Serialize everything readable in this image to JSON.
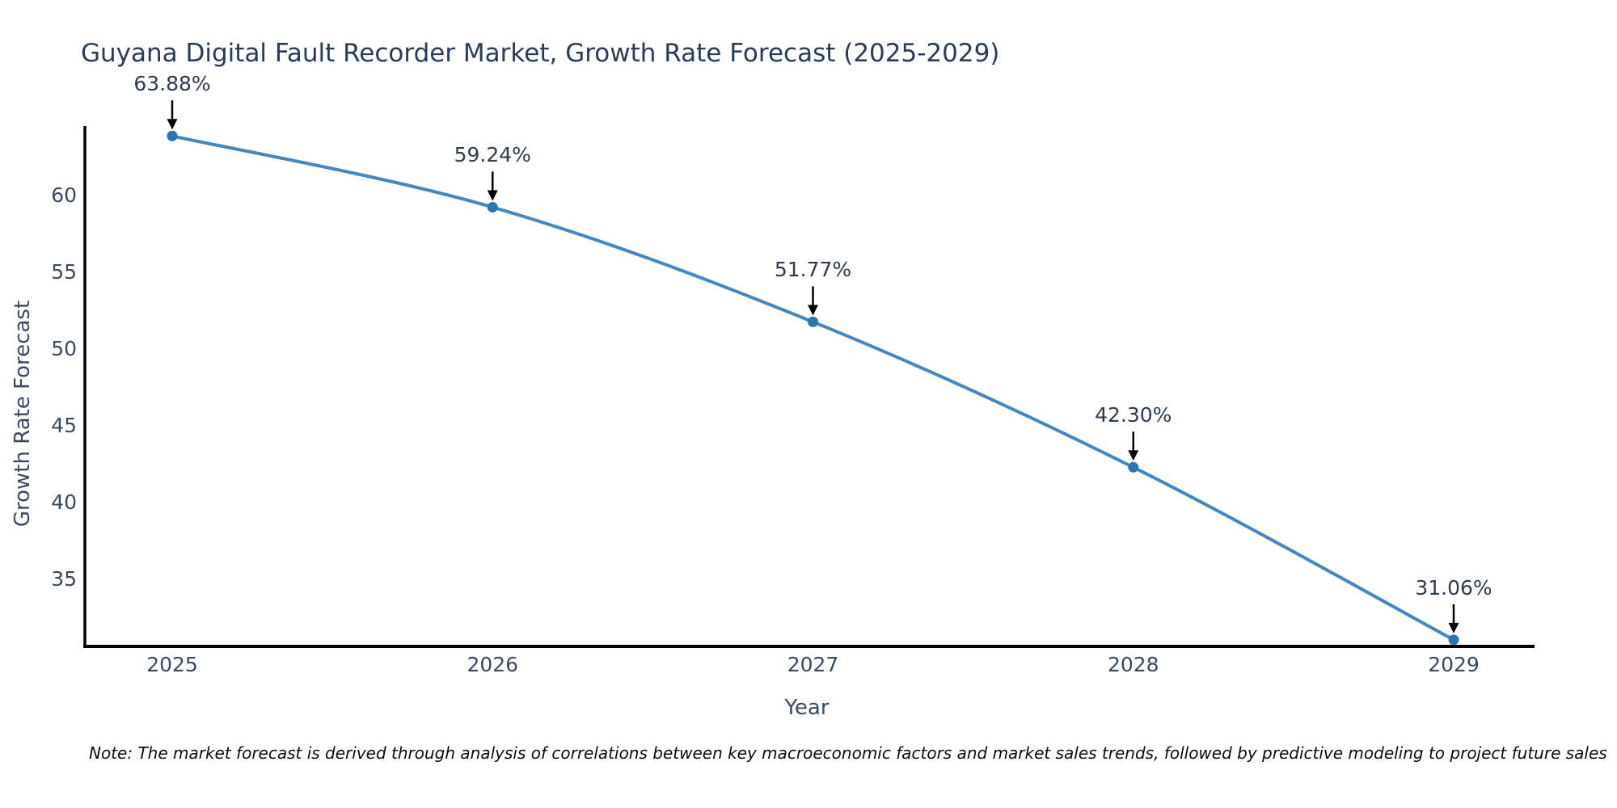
{
  "chart_data": {
    "type": "line",
    "title": "Guyana Digital Fault Recorder Market, Growth Rate Forecast (2025-2029)",
    "xlabel": "Year",
    "ylabel": "Growth Rate Forecast",
    "x": [
      2025,
      2026,
      2027,
      2028,
      2029
    ],
    "values": [
      63.88,
      59.24,
      51.77,
      42.3,
      31.06
    ],
    "point_labels": [
      "63.88%",
      "59.24%",
      "51.77%",
      "42.30%",
      "31.06%"
    ],
    "x_tick_labels": [
      "2025",
      "2026",
      "2027",
      "2028",
      "2029"
    ],
    "y_ticks": [
      35,
      40,
      45,
      50,
      55,
      60
    ],
    "y_tick_labels": [
      "35",
      "40",
      "45",
      "50",
      "55",
      "60"
    ],
    "ylim": [
      30.6,
      64.5
    ],
    "grid": "off",
    "legend": "none",
    "line_color": "#4587bf",
    "marker_color": "#2e74ad",
    "arrow_color": "#000000",
    "axis_color": "#000000",
    "title_color": "#2b3c55",
    "tick_color": "#3b4a5f"
  },
  "footnote": {
    "text": "Note: The market forecast is derived through analysis of correlations between key macroeconomic factors and market sales trends, followed by predictive modeling to project future sales"
  }
}
